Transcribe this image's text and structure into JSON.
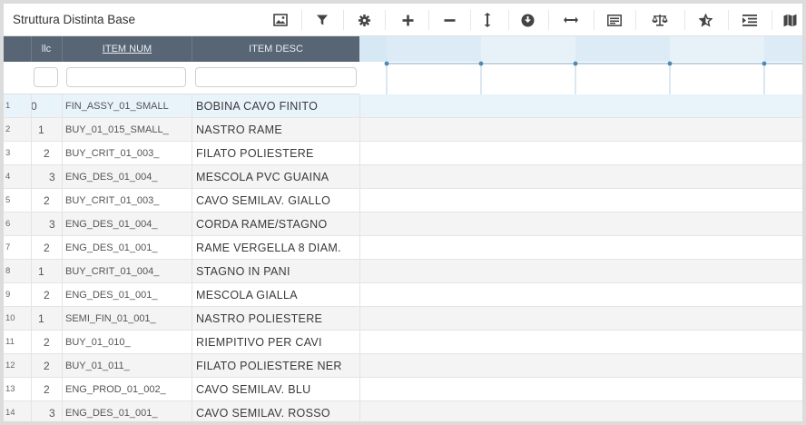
{
  "header": {
    "title": "Struttura Distinta Base"
  },
  "toolbar": {
    "icons": [
      "image-icon",
      "filter-icon",
      "gear-icon",
      "plus-icon",
      "minus-icon",
      "vertical-resize-icon",
      "download-circle-icon",
      "horizontal-resize-icon",
      "list-panel-icon",
      "balance-scale-icon",
      "star-icon",
      "indent-icon",
      "map-icon"
    ]
  },
  "columns": {
    "llc": "llc",
    "item_num": "ITEM NUM",
    "item_desc": "ITEM DESC"
  },
  "rows": [
    {
      "n": "1",
      "llc": "0",
      "item": "FIN_ASSY_01_SMALL",
      "desc": "BOBINA CAVO FINITO"
    },
    {
      "n": "2",
      "llc": "1",
      "item": "BUY_01_015_SMALL_",
      "desc": "NASTRO RAME"
    },
    {
      "n": "3",
      "llc": "2",
      "item": "BUY_CRIT_01_003_",
      "desc": "FILATO POLIESTERE"
    },
    {
      "n": "4",
      "llc": "3",
      "item": "ENG_DES_01_004_",
      "desc": "MESCOLA PVC GUAINA"
    },
    {
      "n": "5",
      "llc": "2",
      "item": "BUY_CRIT_01_003_",
      "desc": "CAVO SEMILAV. GIALLO"
    },
    {
      "n": "6",
      "llc": "3",
      "item": "ENG_DES_01_004_",
      "desc": "CORDA RAME/STAGNO"
    },
    {
      "n": "7",
      "llc": "2",
      "item": "ENG_DES_01_001_",
      "desc": "RAME VERGELLA 8 DIAM."
    },
    {
      "n": "8",
      "llc": "1",
      "item": "BUY_CRIT_01_004_",
      "desc": "STAGNO IN PANI"
    },
    {
      "n": "9",
      "llc": "2",
      "item": "ENG_DES_01_001_",
      "desc": "MESCOLA GIALLA"
    },
    {
      "n": "10",
      "llc": "1",
      "item": "SEMI_FIN_01_001_",
      "desc": "NASTRO POLIESTERE"
    },
    {
      "n": "11",
      "llc": "2",
      "item": "BUY_01_010_",
      "desc": "RIEMPITIVO PER CAVI"
    },
    {
      "n": "12",
      "llc": "2",
      "item": "BUY_01_011_",
      "desc": "FILATO POLIESTERE NER"
    },
    {
      "n": "13",
      "llc": "2",
      "item": "ENG_PROD_01_002_",
      "desc": "CAVO SEMILAV. BLU"
    },
    {
      "n": "14",
      "llc": "3",
      "item": "ENG_DES_01_001_",
      "desc": "CAVO SEMILAV. ROSSO"
    }
  ],
  "colors": {
    "bar_green": "#bcd88a",
    "bar_orange": "#ee6a2a",
    "bar_blue": "#1e78c0",
    "header_bg": "#586574"
  }
}
